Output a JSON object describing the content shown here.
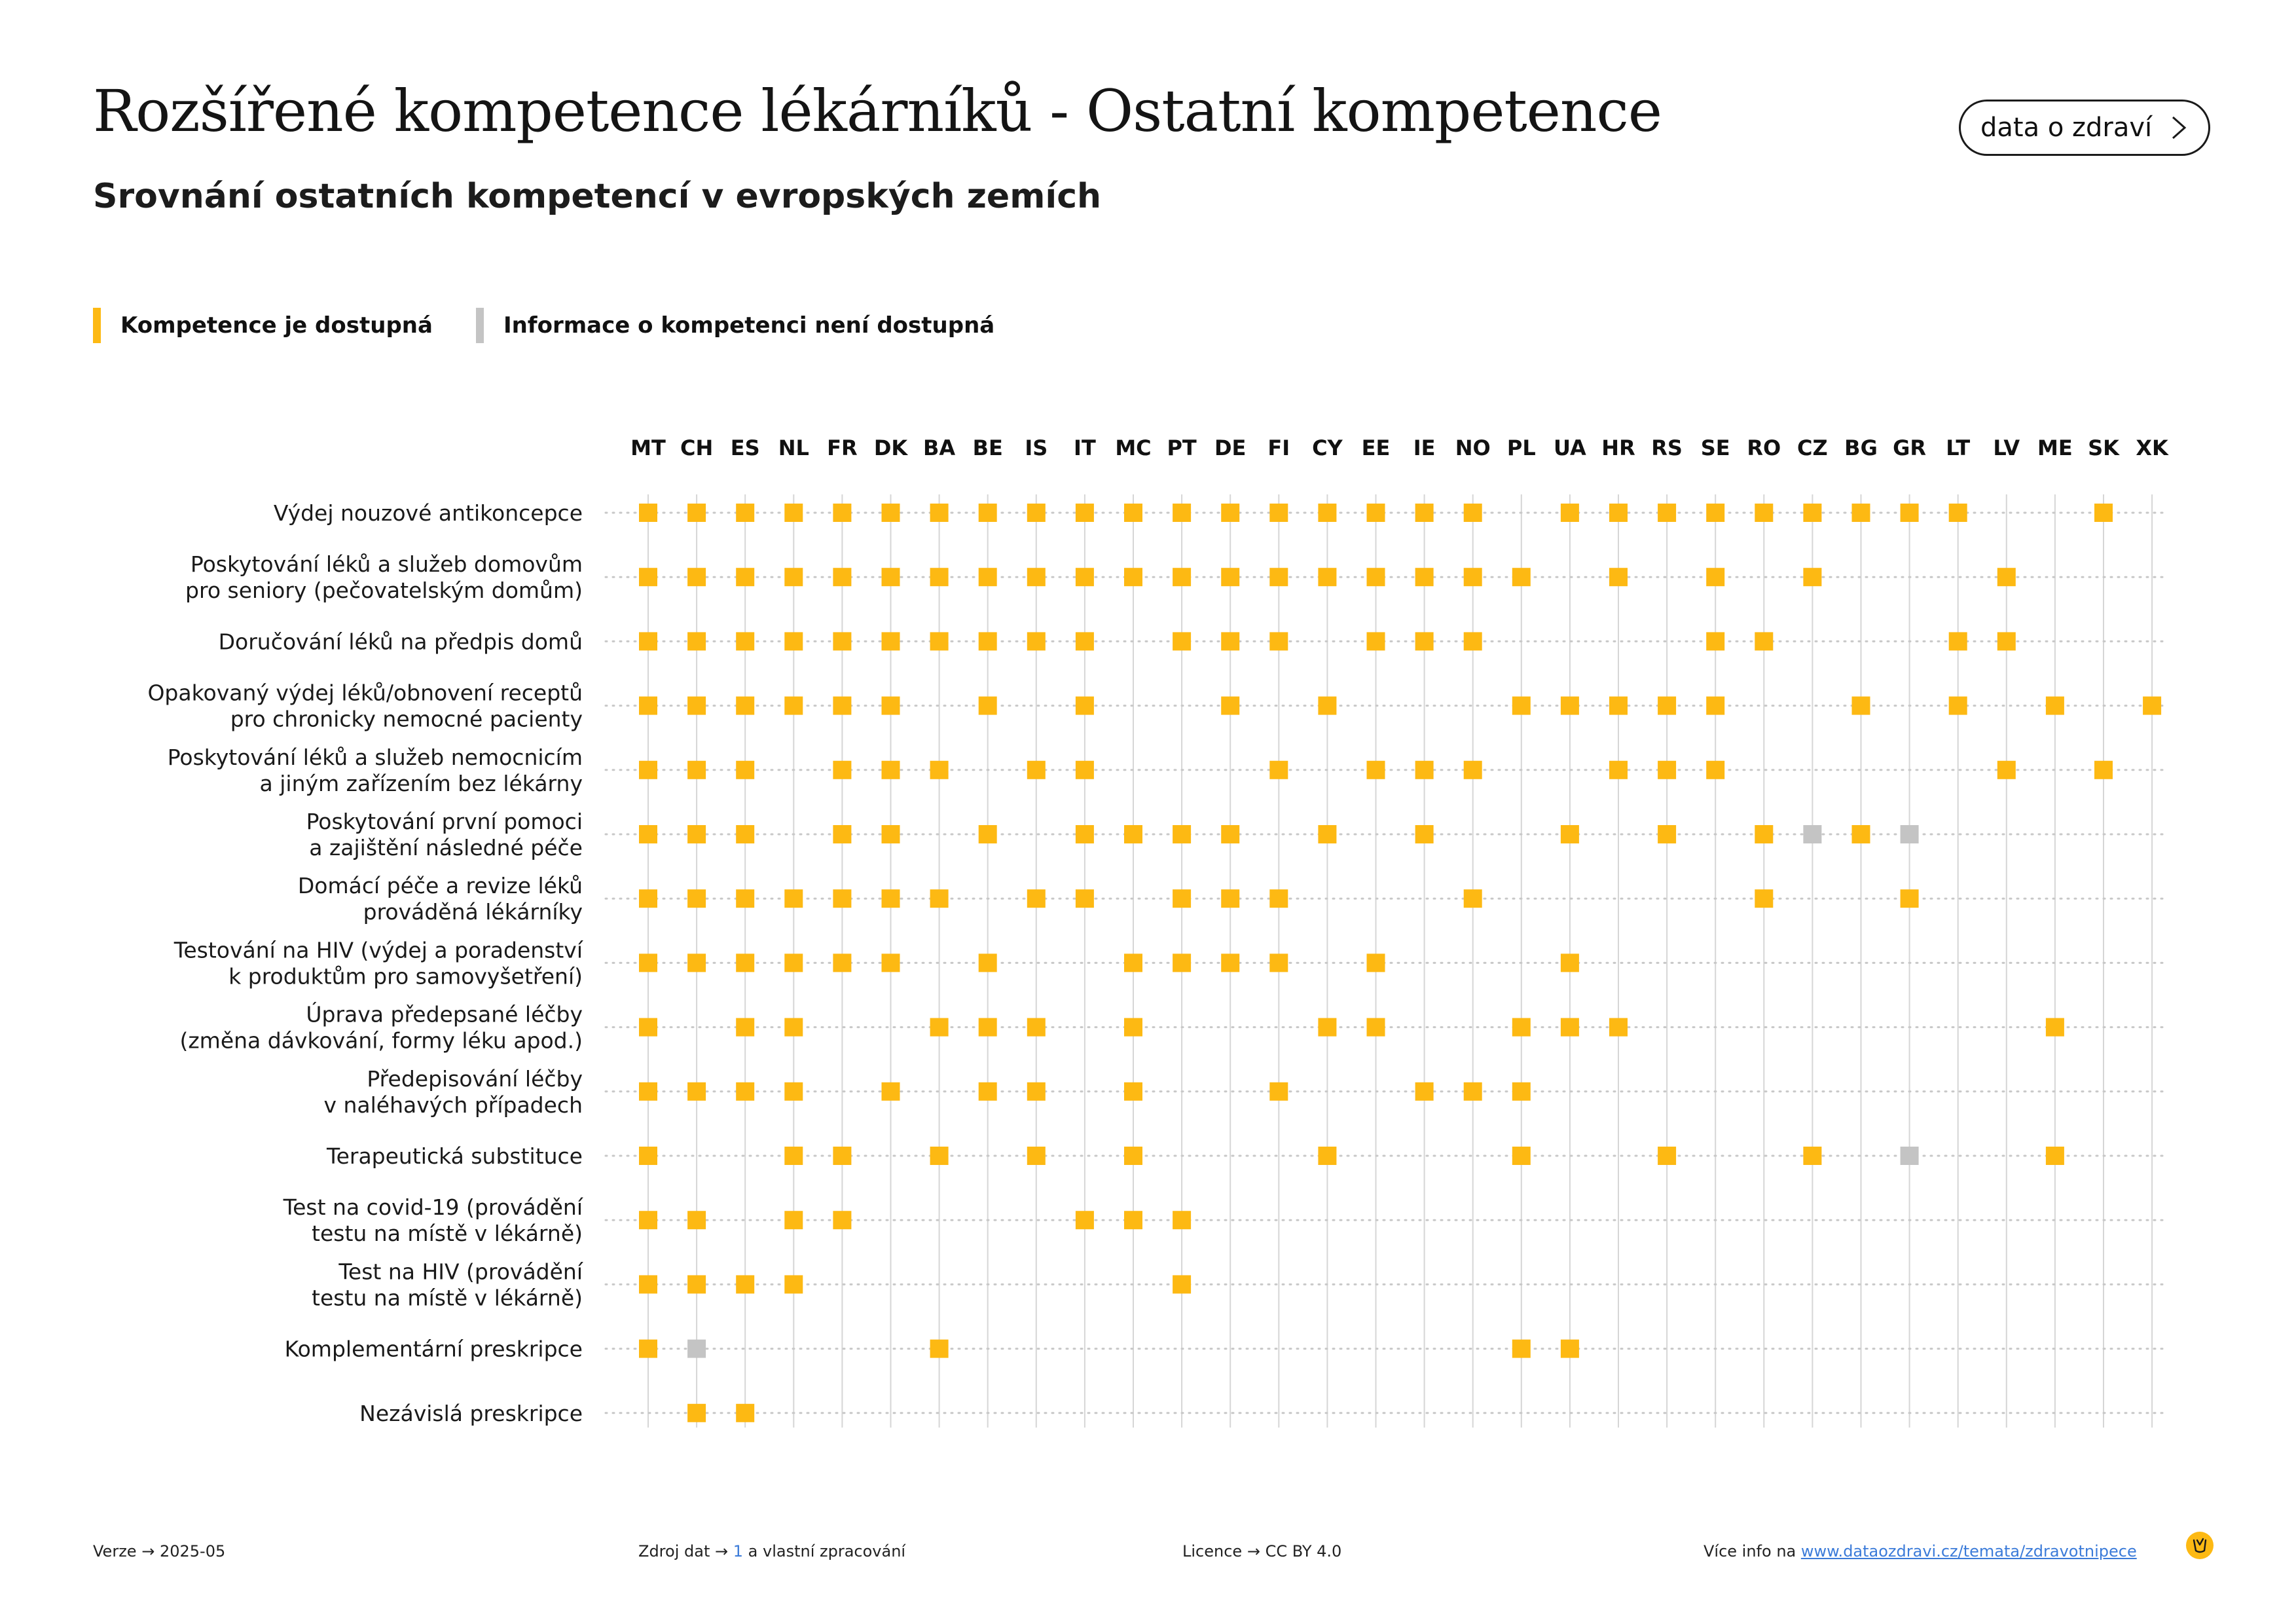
{
  "header": {
    "title": "Rozšířené kompetence lékárníků - Ostatní kompetence",
    "subtitle": "Srovnání ostatních kompetencí v evropských zemích",
    "button_label": "data o zdraví"
  },
  "legend": [
    {
      "label": "Kompetence je dostupná",
      "color": "#FDB913"
    },
    {
      "label": "Informace o kompetenci není dostupná",
      "color": "#C4C4C4"
    }
  ],
  "chart_data": {
    "type": "table",
    "columns": [
      "MT",
      "CH",
      "ES",
      "NL",
      "FR",
      "DK",
      "BA",
      "BE",
      "IS",
      "IT",
      "MC",
      "PT",
      "DE",
      "FI",
      "CY",
      "EE",
      "IE",
      "NO",
      "PL",
      "UA",
      "HR",
      "RS",
      "SE",
      "RO",
      "CZ",
      "BG",
      "GR",
      "LT",
      "LV",
      "ME",
      "SK",
      "XK"
    ],
    "rows": [
      {
        "label": [
          "Výdej nouzové antikoncepce"
        ],
        "available": [
          "MT",
          "CH",
          "ES",
          "NL",
          "FR",
          "DK",
          "BA",
          "BE",
          "IS",
          "IT",
          "MC",
          "PT",
          "DE",
          "FI",
          "CY",
          "EE",
          "IE",
          "NO",
          "UA",
          "HR",
          "RS",
          "SE",
          "RO",
          "CZ",
          "BG",
          "GR",
          "LT",
          "SK"
        ],
        "unknown": []
      },
      {
        "label": [
          "Poskytování léků a služeb domovům",
          "pro seniory (pečovatelským domům)"
        ],
        "available": [
          "MT",
          "CH",
          "ES",
          "NL",
          "FR",
          "DK",
          "BA",
          "BE",
          "IS",
          "IT",
          "MC",
          "PT",
          "DE",
          "FI",
          "CY",
          "EE",
          "IE",
          "NO",
          "PL",
          "HR",
          "SE",
          "CZ",
          "LV"
        ],
        "unknown": []
      },
      {
        "label": [
          "Doručování léků na předpis domů"
        ],
        "available": [
          "MT",
          "CH",
          "ES",
          "NL",
          "FR",
          "DK",
          "BA",
          "BE",
          "IS",
          "IT",
          "PT",
          "DE",
          "FI",
          "EE",
          "IE",
          "NO",
          "SE",
          "RO",
          "LT",
          "LV"
        ],
        "unknown": []
      },
      {
        "label": [
          "Opakovaný výdej léků/obnovení receptů",
          "pro chronicky nemocné pacienty"
        ],
        "available": [
          "MT",
          "CH",
          "ES",
          "NL",
          "FR",
          "DK",
          "BE",
          "IT",
          "DE",
          "CY",
          "PL",
          "UA",
          "HR",
          "RS",
          "SE",
          "BG",
          "LT",
          "ME",
          "XK"
        ],
        "unknown": []
      },
      {
        "label": [
          "Poskytování léků a služeb nemocnicím",
          "a jiným zařízením bez lékárny"
        ],
        "available": [
          "MT",
          "CH",
          "ES",
          "FR",
          "DK",
          "BA",
          "IS",
          "IT",
          "FI",
          "EE",
          "IE",
          "NO",
          "HR",
          "RS",
          "SE",
          "LV",
          "SK"
        ],
        "unknown": []
      },
      {
        "label": [
          "Poskytování první pomoci",
          "a zajištění následné péče"
        ],
        "available": [
          "MT",
          "CH",
          "ES",
          "FR",
          "DK",
          "BE",
          "IT",
          "MC",
          "PT",
          "DE",
          "CY",
          "IE",
          "UA",
          "RS",
          "RO",
          "BG"
        ],
        "unknown": [
          "CZ",
          "GR"
        ]
      },
      {
        "label": [
          "Domácí péče a revize léků",
          "prováděná lékárníky"
        ],
        "available": [
          "MT",
          "CH",
          "ES",
          "NL",
          "FR",
          "DK",
          "BA",
          "IS",
          "IT",
          "PT",
          "DE",
          "FI",
          "NO",
          "RO",
          "GR"
        ],
        "unknown": []
      },
      {
        "label": [
          "Testování na HIV (výdej a poradenství",
          "k produktům pro samovyšetření)"
        ],
        "available": [
          "MT",
          "CH",
          "ES",
          "NL",
          "FR",
          "DK",
          "BE",
          "MC",
          "PT",
          "DE",
          "FI",
          "EE",
          "UA"
        ],
        "unknown": []
      },
      {
        "label": [
          "Úprava předepsané léčby",
          "(změna dávkování, formy léku apod.)"
        ],
        "available": [
          "MT",
          "ES",
          "NL",
          "BA",
          "BE",
          "IS",
          "MC",
          "CY",
          "EE",
          "PL",
          "UA",
          "HR",
          "ME"
        ],
        "unknown": []
      },
      {
        "label": [
          "Předepisování léčby",
          "v naléhavých případech"
        ],
        "available": [
          "MT",
          "CH",
          "ES",
          "NL",
          "DK",
          "BE",
          "IS",
          "MC",
          "FI",
          "IE",
          "NO",
          "PL"
        ],
        "unknown": []
      },
      {
        "label": [
          "Terapeutická substituce"
        ],
        "available": [
          "MT",
          "NL",
          "FR",
          "BA",
          "IS",
          "MC",
          "CY",
          "PL",
          "RS",
          "CZ",
          "ME"
        ],
        "unknown": [
          "GR"
        ]
      },
      {
        "label": [
          "Test na covid-19 (provádění",
          "testu na místě v lékárně)"
        ],
        "available": [
          "MT",
          "CH",
          "NL",
          "FR",
          "IT",
          "MC",
          "PT"
        ],
        "unknown": []
      },
      {
        "label": [
          "Test na HIV (provádění",
          "testu na místě v lékárně)"
        ],
        "available": [
          "MT",
          "CH",
          "ES",
          "NL",
          "PT"
        ],
        "unknown": []
      },
      {
        "label": [
          "Komplementární preskripce"
        ],
        "available": [
          "MT",
          "BA",
          "PL",
          "UA"
        ],
        "unknown": [
          "CH"
        ]
      },
      {
        "label": [
          "Nezávislá preskripce"
        ],
        "available": [
          "CH",
          "ES"
        ],
        "unknown": []
      }
    ]
  },
  "footer": {
    "version_label": "Verze",
    "version_value": "2025-05",
    "source_label": "Zdroj dat",
    "source_ref": "1",
    "source_rest": "a vlastní zpracování",
    "license_label": "Licence",
    "license_value": "CC BY 4.0",
    "more_label": "Více info na",
    "more_link": "www.dataozdravi.cz/temata/zdravotnipece"
  },
  "colors": {
    "available": "#FDB913",
    "unknown": "#C4C4C4",
    "grid": "#D6D6D6",
    "dots": "#C8C8C8"
  }
}
